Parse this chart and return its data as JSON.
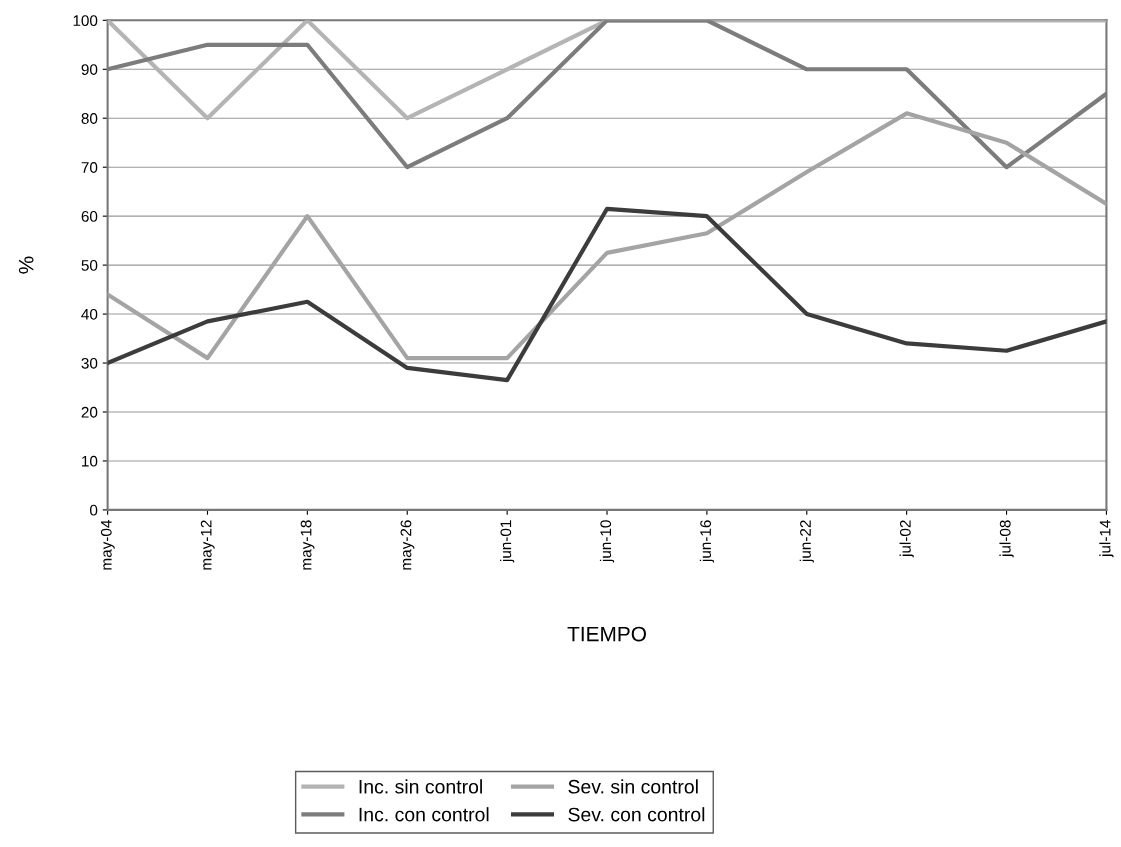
{
  "chart_data": {
    "type": "line",
    "xlabel": "TIEMPO",
    "ylabel": "%",
    "categories": [
      "may-04",
      "may-12",
      "may-18",
      "may-26",
      "jun-01",
      "jun-10",
      "jun-16",
      "jun-22",
      "jul-02",
      "jul-08",
      "jul-14"
    ],
    "series": [
      {
        "name": "Inc. sin control",
        "color": "#b4b4b4",
        "values": [
          100,
          80,
          100,
          80,
          90,
          100,
          100,
          100,
          100,
          100,
          100
        ]
      },
      {
        "name": "Inc. con control",
        "color": "#7c7c7c",
        "values": [
          90,
          95,
          95,
          70,
          80,
          100,
          100,
          90,
          90,
          70,
          85
        ]
      },
      {
        "name": "Sev. sin control",
        "color": "#a4a4a4",
        "values": [
          44,
          31,
          60,
          31,
          31,
          52.5,
          56.5,
          69,
          81,
          75,
          62.5
        ]
      },
      {
        "name": "Sev. con control",
        "color": "#3c3c3c",
        "values": [
          30,
          38.5,
          42.5,
          29,
          26.5,
          61.5,
          60,
          40,
          34,
          32.5,
          38.5
        ]
      }
    ],
    "ylim": [
      0,
      100
    ],
    "yticks": [
      0,
      10,
      20,
      30,
      40,
      50,
      60,
      70,
      80,
      90,
      100
    ],
    "grid": "y",
    "legend": "bottom",
    "marker": "none",
    "line_style": "solid"
  }
}
